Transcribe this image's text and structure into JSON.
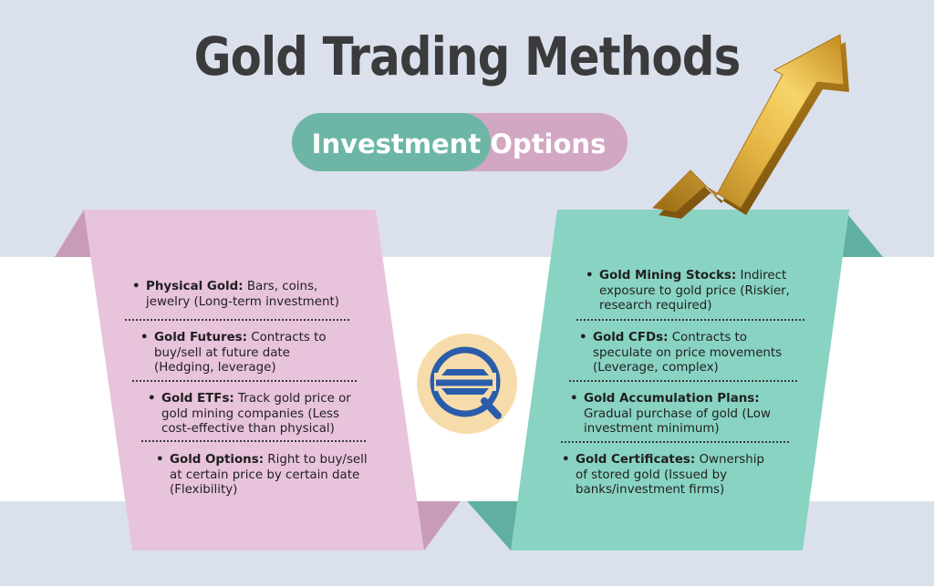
{
  "title": "Gold Trading Methods",
  "subtitle": "Investment Options",
  "colors": {
    "background": "#dbe1ec",
    "band": "#ffffff",
    "pink_panel": "#e8c3dc",
    "pink_fold": "#c99bbb",
    "teal_panel": "#89d3c3",
    "teal_fold": "#5fb0a2",
    "pill_teal": "#6db6a6",
    "pill_pink": "#d2a7c3",
    "arrow_gold": "#d9a934",
    "logo_bg": "#f6dcaa",
    "logo_blue": "#2a5cab",
    "title_text": "#3b3b3d"
  },
  "logo": {
    "icon": "sq-logo-icon"
  },
  "left_items": [
    {
      "term": "Physical Gold:",
      "desc": " Bars, coins, jewelry (Long-term investment)"
    },
    {
      "term": "Gold Futures:",
      "desc": " Contracts to buy/sell at future date (Hedging, leverage)"
    },
    {
      "term": "Gold ETFs:",
      "desc": " Track gold price or gold mining companies (Less cost-effective than physical)"
    },
    {
      "term": "Gold Options:",
      "desc": " Right to buy/sell at certain price by certain date (Flexibility)"
    }
  ],
  "right_items": [
    {
      "term": "Gold Mining Stocks:",
      "desc": " Indirect exposure to gold price (Riskier, research required)"
    },
    {
      "term": "Gold CFDs:",
      "desc": " Contracts to speculate on price movements (Leverage, complex)"
    },
    {
      "term": "Gold Accumulation Plans:",
      "desc": " Gradual purchase of gold (Low investment minimum)"
    },
    {
      "term": "Gold Certificates:",
      "desc": " Ownership of stored gold (Issued by banks/investment firms)"
    }
  ]
}
